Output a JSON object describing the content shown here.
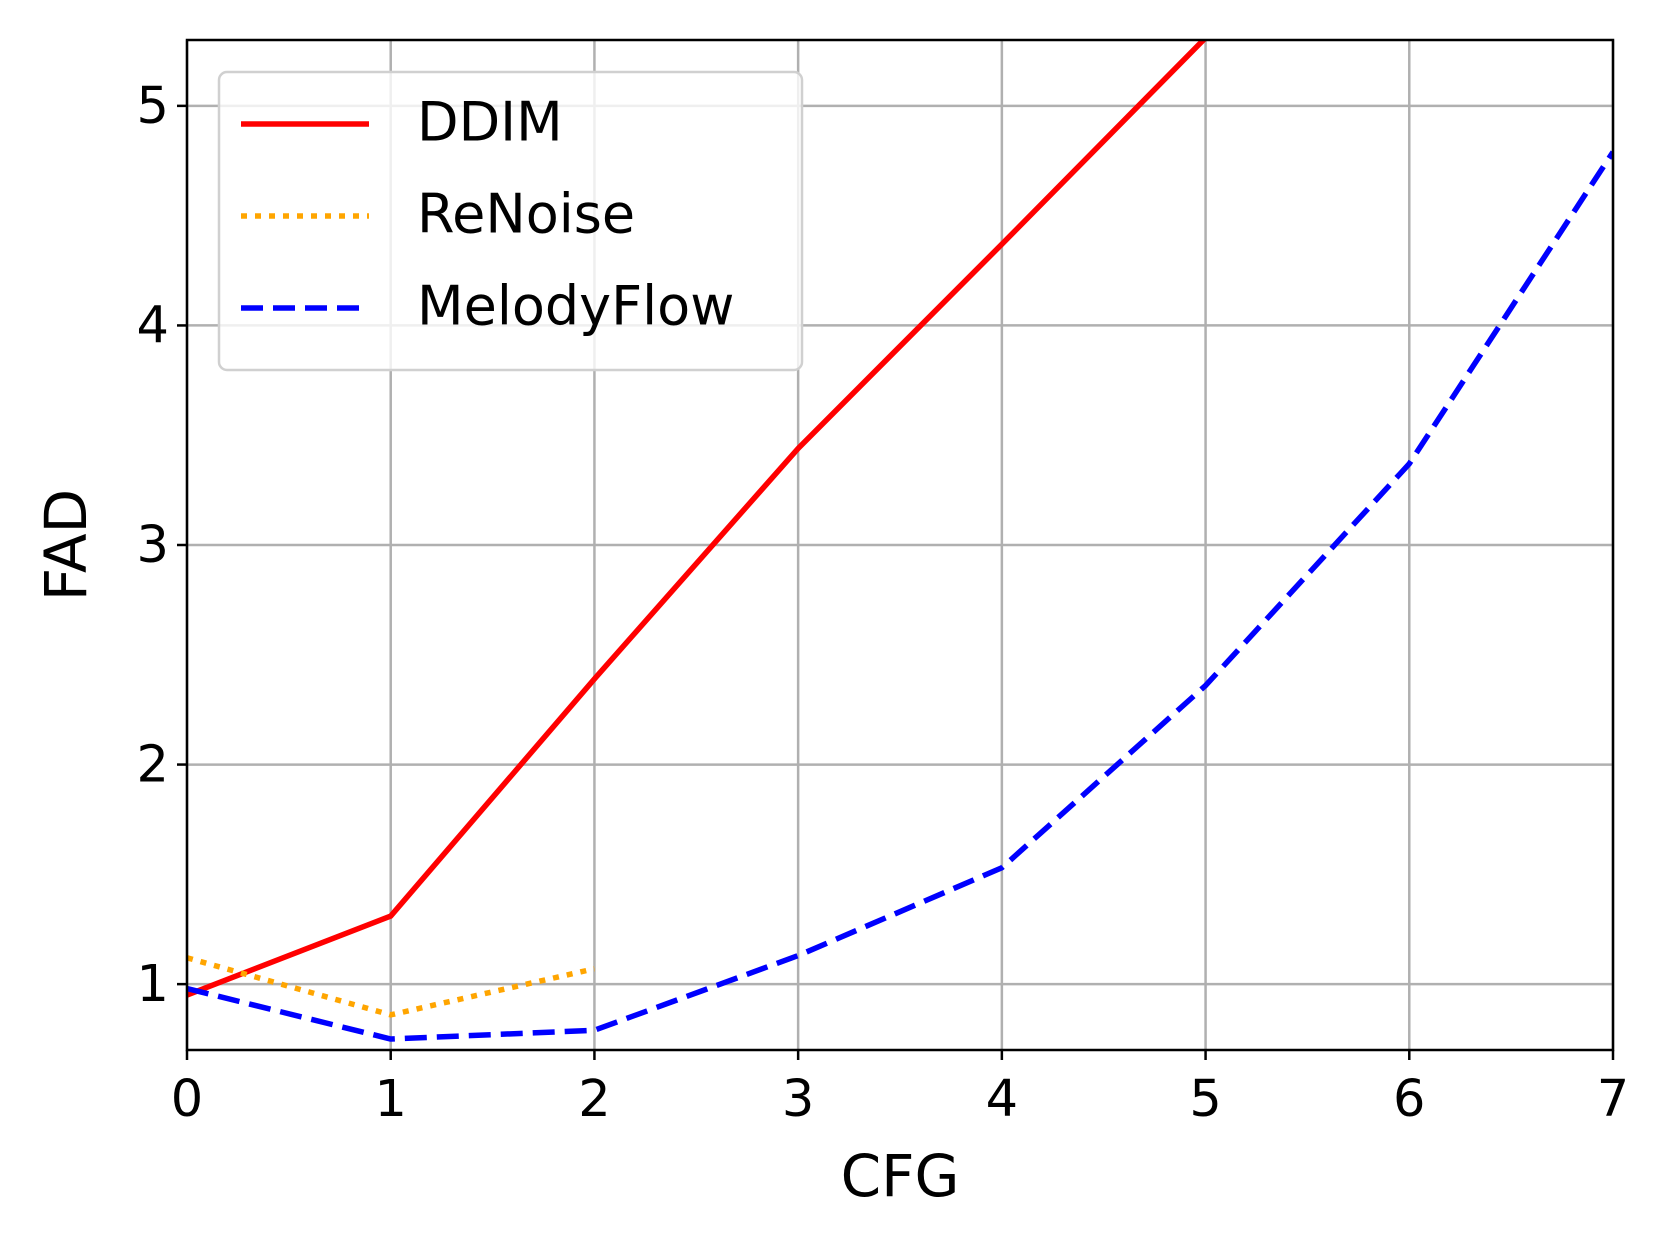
{
  "chart_data": {
    "type": "line",
    "x_label": "CFG",
    "y_label": "FAD",
    "x": [
      0,
      1,
      2,
      3,
      4,
      5,
      6,
      7
    ],
    "series": [
      {
        "name": "DDIM",
        "color": "#ff0000",
        "style": "solid",
        "values": [
          0.95,
          1.31,
          2.39,
          3.44,
          4.37,
          5.31,
          null,
          null
        ]
      },
      {
        "name": "ReNoise",
        "color": "#ffa500",
        "style": "dotted",
        "values": [
          1.12,
          0.86,
          1.07,
          null,
          null,
          null,
          null,
          null
        ]
      },
      {
        "name": "MelodyFlow",
        "color": "#0000ff",
        "style": "dashed",
        "values": [
          0.98,
          0.75,
          0.79,
          1.13,
          1.53,
          2.36,
          3.37,
          4.79
        ]
      }
    ],
    "xlim": [
      0,
      7
    ],
    "ylim": [
      0.7,
      5.3
    ],
    "xticks": [
      0,
      1,
      2,
      3,
      4,
      5,
      6,
      7
    ],
    "yticks": [
      1,
      2,
      3,
      4,
      5
    ],
    "grid": true,
    "legend": "upper left"
  }
}
